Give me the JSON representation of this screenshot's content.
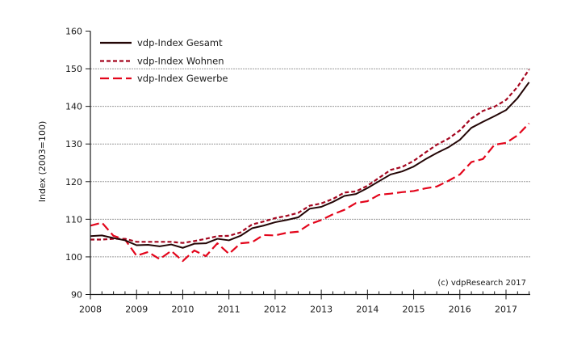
{
  "chart_data": {
    "type": "line",
    "title": "",
    "xlabel": "",
    "ylabel": "Index (2003=100)",
    "xlim": [
      2008,
      2017.5
    ],
    "ylim": [
      90,
      160
    ],
    "x_ticks": [
      2008,
      2009,
      2010,
      2011,
      2012,
      2013,
      2014,
      2015,
      2016,
      2017
    ],
    "x_minor_step": 0.25,
    "y_ticks": [
      90,
      100,
      110,
      120,
      130,
      140,
      150,
      160
    ],
    "grid": "horizontal-dashed",
    "legend_position": "top-left",
    "annotation": "(c) vdpResearch 2017",
    "x": [
      2008.0,
      2008.25,
      2008.5,
      2008.75,
      2009.0,
      2009.25,
      2009.5,
      2009.75,
      2010.0,
      2010.25,
      2010.5,
      2010.75,
      2011.0,
      2011.25,
      2011.5,
      2011.75,
      2012.0,
      2012.25,
      2012.5,
      2012.75,
      2013.0,
      2013.25,
      2013.5,
      2013.75,
      2014.0,
      2014.25,
      2014.5,
      2014.75,
      2015.0,
      2015.25,
      2015.5,
      2015.75,
      2016.0,
      2016.25,
      2016.5,
      2016.75,
      2017.0,
      2017.25,
      2017.5
    ],
    "series": [
      {
        "name": "vdp-Index Gesamt",
        "color": "#230505",
        "style": "solid",
        "values": [
          105.5,
          105.7,
          105.0,
          104.4,
          103.1,
          103.2,
          102.8,
          103.3,
          102.4,
          103.5,
          103.6,
          104.8,
          104.4,
          105.6,
          107.6,
          108.3,
          109.2,
          109.8,
          110.5,
          112.8,
          113.3,
          114.6,
          116.2,
          116.7,
          118.3,
          120.1,
          121.9,
          122.7,
          124.0,
          125.9,
          127.6,
          129.1,
          131.1,
          134.3,
          135.9,
          137.4,
          139.0,
          142.2,
          146.4
        ]
      },
      {
        "name": "vdp-Index Wohnen",
        "color": "#a5061f",
        "style": "short-dash",
        "values": [
          104.6,
          104.6,
          104.8,
          104.8,
          104.0,
          104.0,
          104.0,
          104.0,
          103.7,
          104.2,
          104.8,
          105.5,
          105.6,
          106.5,
          108.6,
          109.4,
          110.3,
          110.9,
          111.7,
          113.6,
          114.2,
          115.4,
          117.1,
          117.4,
          118.9,
          121.0,
          123.1,
          123.9,
          125.5,
          127.7,
          129.8,
          131.4,
          133.6,
          136.8,
          138.8,
          139.9,
          141.7,
          145.2,
          149.8
        ]
      },
      {
        "name": "vdp-Index Gewerbe",
        "color": "#e3051b",
        "style": "long-dash",
        "values": [
          108.3,
          109.1,
          105.6,
          104.6,
          100.3,
          101.3,
          99.4,
          101.6,
          98.9,
          101.7,
          100.2,
          103.6,
          100.8,
          103.6,
          103.9,
          105.8,
          105.7,
          106.4,
          106.7,
          108.7,
          109.8,
          111.3,
          112.5,
          114.3,
          114.8,
          116.5,
          116.8,
          117.2,
          117.5,
          118.2,
          118.7,
          120.2,
          121.9,
          125.2,
          126.0,
          129.8,
          130.3,
          132.3,
          135.5
        ]
      }
    ]
  }
}
